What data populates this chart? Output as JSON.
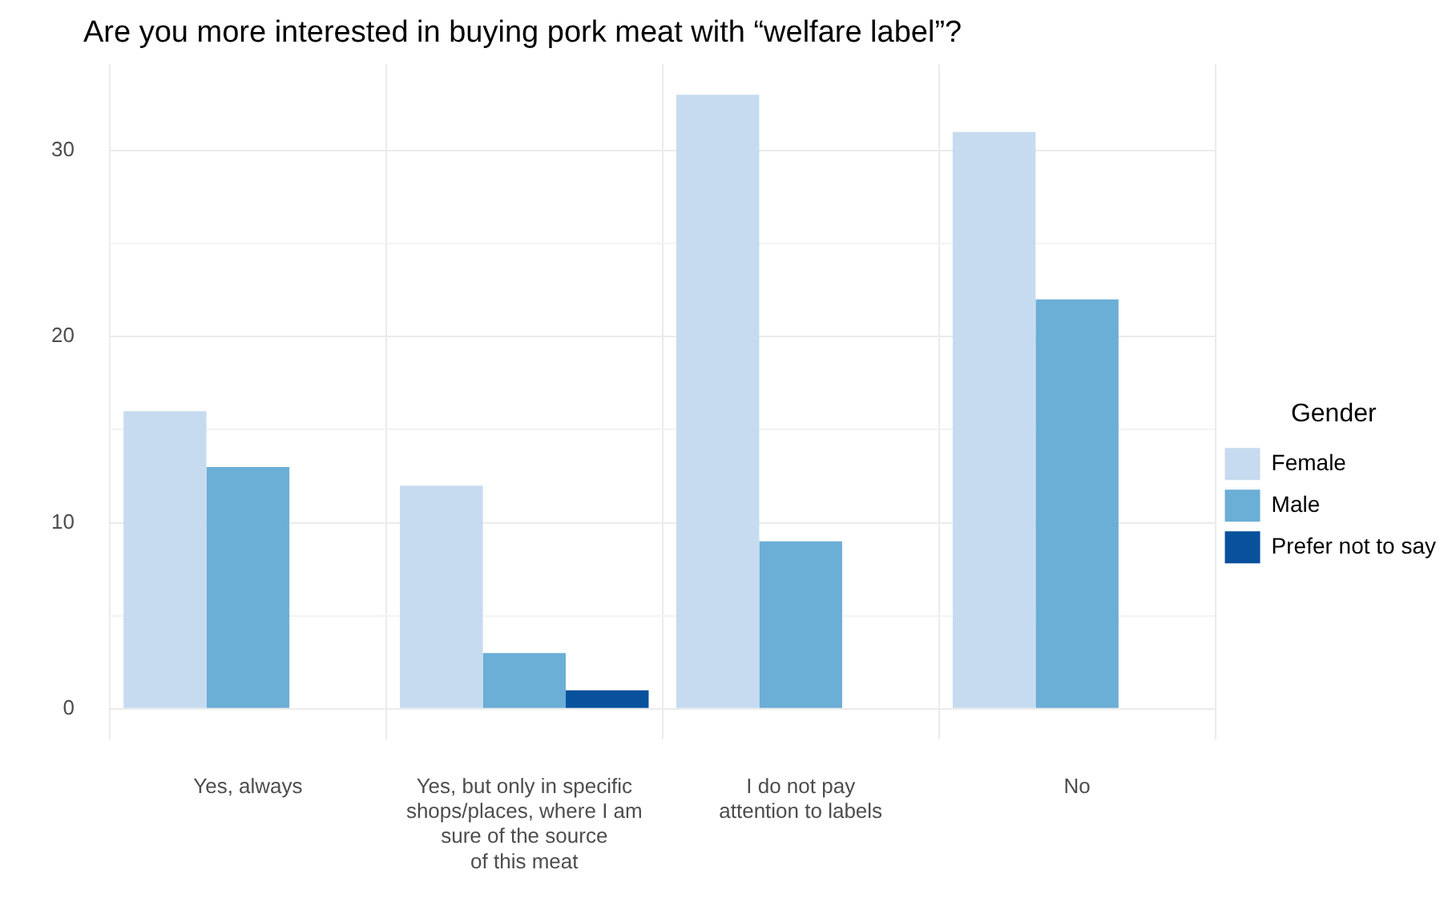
{
  "chart_data": {
    "type": "bar",
    "title": "Are you more interested in buying pork meat with “welfare label”?",
    "categories": [
      "Yes, always",
      "Yes, but only in specific\nshops/places, where I am\nsure of the source\nof this meat",
      "I do not pay\nattention to labels",
      "No"
    ],
    "series": [
      {
        "name": "Female",
        "color": "#c6dbef",
        "values": [
          16,
          12,
          33,
          31
        ]
      },
      {
        "name": "Male",
        "color": "#6baed6",
        "values": [
          13,
          3,
          9,
          22
        ]
      },
      {
        "name": "Prefer not to say",
        "color": "#08519c",
        "values": [
          null,
          1,
          null,
          null
        ]
      }
    ],
    "legend_title": "Gender",
    "legend": "right",
    "ylim": [
      -1.65,
      34.65
    ],
    "yticks": [
      0,
      {
        "value": 5,
        "label": null
      },
      10,
      {
        "value": 15,
        "label": null
      },
      20,
      {
        "value": 25,
        "label": null
      },
      30
    ],
    "grid": true
  }
}
